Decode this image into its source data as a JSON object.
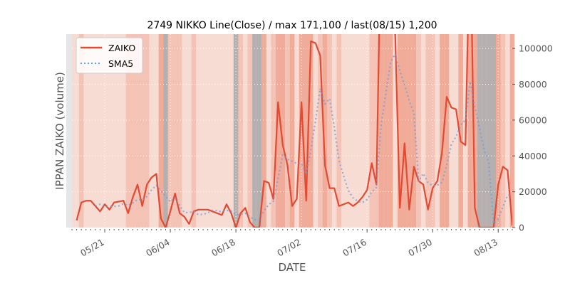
{
  "chart_data": {
    "type": "line",
    "title": "2749 NIKKO Line(Close) / max 171,100 / last(08/15) 1,200",
    "xlabel": "DATE",
    "ylabel": "IPPAN ZAIKO (volume)",
    "x_start": "2018-05-15",
    "x_end": "2018-08-15",
    "xlim": [
      "2018-05-14",
      "2018-08-16"
    ],
    "ylim": [
      0,
      108000
    ],
    "y_axis_side": "right",
    "grid": true,
    "legend_position": "upper-left",
    "x_ticks": [
      {
        "date": "2018-05-21",
        "label": "05/21"
      },
      {
        "date": "2018-06-04",
        "label": "06/04"
      },
      {
        "date": "2018-06-18",
        "label": "06/18"
      },
      {
        "date": "2018-07-02",
        "label": "07/02"
      },
      {
        "date": "2018-07-16",
        "label": "07/16"
      },
      {
        "date": "2018-07-30",
        "label": "07/30"
      },
      {
        "date": "2018-08-13",
        "label": "08/13"
      }
    ],
    "y_ticks": [
      {
        "value": 0,
        "label": "0"
      },
      {
        "value": 20000,
        "label": "20000"
      },
      {
        "value": 40000,
        "label": "40000"
      },
      {
        "value": 60000,
        "label": "60000"
      },
      {
        "value": 80000,
        "label": "80000"
      },
      {
        "value": 100000,
        "label": "100000"
      }
    ],
    "series": [
      {
        "name": "ZAIKO",
        "color": "#e24a33",
        "style": "solid",
        "values": [
          4000,
          14000,
          15000,
          15000,
          12000,
          9000,
          13000,
          10000,
          14000,
          14500,
          15000,
          8000,
          17000,
          24000,
          12000,
          24000,
          28000,
          30000,
          5000,
          0,
          9000,
          19000,
          8000,
          6000,
          2000,
          9000,
          10000,
          10000,
          10000,
          9000,
          8000,
          7000,
          13000,
          8000,
          0,
          8000,
          11000,
          3000,
          0,
          0,
          26000,
          25000,
          16000,
          70000,
          46000,
          35000,
          12000,
          16000,
          70000,
          15000,
          104000,
          103000,
          96000,
          35000,
          22000,
          22000,
          12000,
          13000,
          14000,
          12000,
          14000,
          17000,
          21000,
          36000,
          24000,
          171100,
          132000,
          110000,
          108000,
          11000,
          47000,
          10000,
          34000,
          26000,
          24000,
          10000,
          22000,
          26000,
          42000,
          73000,
          67000,
          66000,
          48000,
          46000,
          171100,
          11000,
          0,
          0,
          0,
          0,
          24000,
          34000,
          32000,
          1200
        ],
        "clipped_peaks_note": "ZAIKO"
      },
      {
        "name": "SMA5",
        "color": "#6f9ed8",
        "style": "dotted",
        "values": [
          null,
          null,
          null,
          null,
          12000,
          13000,
          12000,
          11800,
          11800,
          12100,
          13300,
          12300,
          13700,
          15700,
          15500,
          17400,
          21000,
          23600,
          20600,
          17400,
          14400,
          16600,
          12200,
          8400,
          8400,
          9000,
          7200,
          7400,
          8200,
          9600,
          9400,
          8800,
          9600,
          9200,
          7200,
          7200,
          8000,
          6000,
          4400,
          4400,
          9400,
          12800,
          14800,
          27400,
          40600,
          38000,
          37000,
          35800,
          35800,
          29800,
          43400,
          59600,
          77600,
          69000,
          72000,
          56000,
          37400,
          28800,
          20600,
          16600,
          14600,
          14000,
          15600,
          20000,
          22400,
          57400,
          74600,
          92100,
          97000,
          87600,
          79600,
          70800,
          63800,
          25800,
          30200,
          25200,
          23200,
          23600,
          25200,
          35000,
          46600,
          50800,
          57400,
          60000,
          81620,
          67740,
          55420,
          43220,
          36220,
          2200,
          4800,
          11600,
          18000,
          18240
        ]
      }
    ],
    "background_bands": "daily shading: light pink weekdays, salmon on high-change days, gray on zero-trading days"
  }
}
